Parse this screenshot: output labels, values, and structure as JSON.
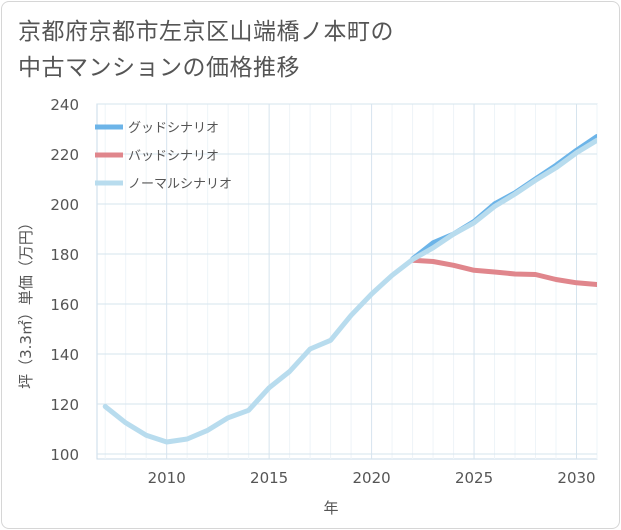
{
  "title_lines": [
    "京都府京都市左京区山端橋ノ本町の",
    "中古マンションの価格推移"
  ],
  "chart_data": {
    "type": "line",
    "title": "京都府京都市左京区山端橋ノ本町の中古マンションの価格推移",
    "xlabel": "年",
    "ylabel": "坪（3.3㎡）単価（万円）",
    "xlim": [
      2006.6,
      2031
    ],
    "ylim": [
      98,
      240
    ],
    "x_ticks": [
      2010,
      2015,
      2020,
      2025,
      2030
    ],
    "y_ticks": [
      100,
      120,
      140,
      160,
      180,
      200,
      220,
      240
    ],
    "grid": true,
    "legend_position": "top-left",
    "series": [
      {
        "name": "グッドシナリオ",
        "color": "#6cb4e8",
        "x": [
          2022,
          2023,
          2024,
          2025,
          2026,
          2027,
          2028,
          2029,
          2030,
          2031
        ],
        "y": [
          178,
          184.5,
          188,
          193,
          200,
          204.5,
          210,
          215.5,
          221.5,
          227
        ]
      },
      {
        "name": "バッドシナリオ",
        "color": "#e0868c",
        "x": [
          2022,
          2023,
          2024,
          2025,
          2026,
          2027,
          2028,
          2029,
          2030,
          2031
        ],
        "y": [
          177.5,
          177,
          175.5,
          173.5,
          172.8,
          172,
          171.8,
          169.8,
          168.5,
          167.8
        ]
      },
      {
        "name": "ノーマルシナリオ",
        "color": "#b8dcee",
        "x": [
          2007,
          2008,
          2009,
          2010,
          2011,
          2012,
          2013,
          2014,
          2015,
          2016,
          2017,
          2018,
          2019,
          2020,
          2021,
          2022,
          2023,
          2024,
          2025,
          2026,
          2027,
          2028,
          2029,
          2030,
          2031
        ],
        "y": [
          119,
          112.5,
          107.5,
          104.8,
          106,
          109.5,
          114.5,
          117.5,
          126.5,
          133,
          142,
          145.5,
          155.5,
          164,
          171.5,
          177.8,
          182.5,
          188,
          192.5,
          199,
          204,
          209.5,
          214.5,
          220.5,
          225.5
        ]
      }
    ]
  }
}
